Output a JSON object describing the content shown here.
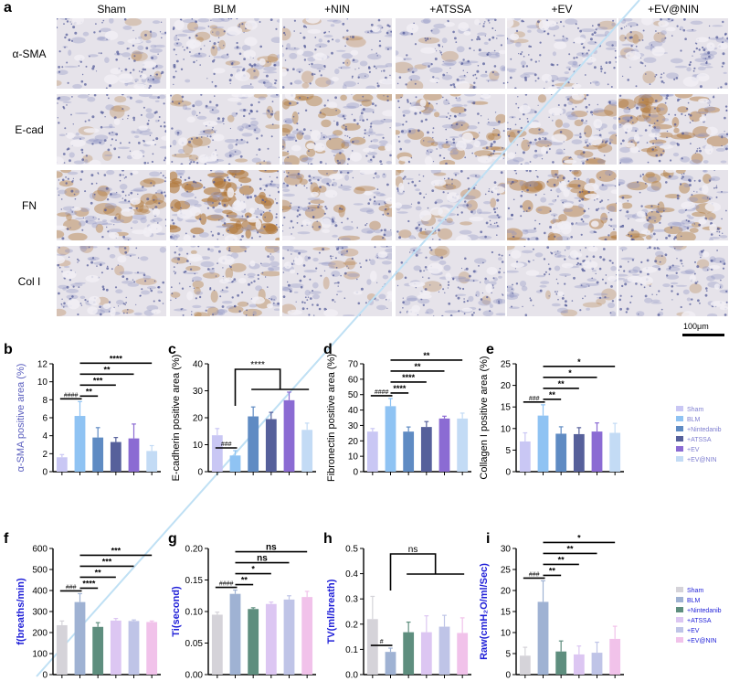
{
  "panel_a": {
    "label": "a",
    "columns": [
      "Sham",
      "BLM",
      "+NIN",
      "+ATSSA",
      "+EV",
      "+EV@NIN"
    ],
    "rows": [
      "α-SMA",
      "E-cad",
      "FN",
      "Col I"
    ],
    "scale_bar": "100μm",
    "stain_colors": {
      "hematoxylin": "#8b93c4",
      "dab": "#b0783a",
      "background": "#e6e3ea"
    },
    "dab_intensity": [
      [
        0.1,
        0.22,
        0.15,
        0.12,
        0.1,
        0.12
      ],
      [
        0.1,
        0.25,
        0.5,
        0.45,
        0.4,
        0.55
      ],
      [
        0.45,
        0.9,
        0.4,
        0.3,
        0.55,
        0.5
      ],
      [
        0.15,
        0.35,
        0.15,
        0.1,
        0.1,
        0.1
      ]
    ]
  },
  "chart_data": [
    {
      "panel": "b",
      "type": "bar",
      "ylabel": "α-SMA  positive area (%)",
      "ylim": [
        0,
        12
      ],
      "yticks": [
        "0",
        "2",
        "4",
        "6",
        "8",
        "10",
        "12"
      ],
      "ylabel_color": "#5b5fbf",
      "values": [
        1.6,
        6.2,
        3.8,
        3.3,
        3.7,
        2.3
      ],
      "errors": [
        0.3,
        1.6,
        1.1,
        0.5,
        1.6,
        0.6
      ],
      "colors": [
        "#c9c7f4",
        "#8fc3f3",
        "#5f8bc3",
        "#56609b",
        "#8b6bd3",
        "#c3dbf5"
      ],
      "annotations": [
        {
          "text": "####",
          "from": 0,
          "to": 1
        },
        {
          "text": "**",
          "from": 1,
          "to": 2
        },
        {
          "text": "***",
          "from": 1,
          "to": 3
        },
        {
          "text": "**",
          "from": 1,
          "to": 4
        },
        {
          "text": "****",
          "from": 1,
          "to": 5
        }
      ]
    },
    {
      "panel": "c",
      "type": "bar",
      "ylabel": "E-cadherin positive area (%)",
      "ylim": [
        0,
        40
      ],
      "yticks": [
        "0",
        "10",
        "20",
        "30",
        "40"
      ],
      "ylabel_color": "#000000",
      "values": [
        13.5,
        6.0,
        20.5,
        19.5,
        26.5,
        15.5
      ],
      "errors": [
        2.5,
        1.8,
        3.5,
        2.5,
        3.0,
        2.5
      ],
      "colors": [
        "#c9c7f4",
        "#8fc3f3",
        "#5f8bc3",
        "#56609b",
        "#8b6bd3",
        "#c3dbf5"
      ],
      "annotations": [
        {
          "text": "###",
          "from": 0,
          "to": 1
        },
        {
          "text": "****",
          "from": 1,
          "to": 5,
          "group": true
        }
      ]
    },
    {
      "panel": "d",
      "type": "bar",
      "ylabel": "Fibronectin positive area (%)",
      "ylim": [
        0,
        70
      ],
      "yticks": [
        "0",
        "10",
        "20",
        "30",
        "40",
        "50",
        "60",
        "70"
      ],
      "ylabel_color": "#000000",
      "values": [
        26,
        42.5,
        26,
        29,
        34.5,
        34.5
      ],
      "errors": [
        2,
        5,
        3,
        3.5,
        1.5,
        3.5
      ],
      "colors": [
        "#c9c7f4",
        "#8fc3f3",
        "#5f8bc3",
        "#56609b",
        "#8b6bd3",
        "#c3dbf5"
      ],
      "annotations": [
        {
          "text": "####",
          "from": 0,
          "to": 1
        },
        {
          "text": "****",
          "from": 1,
          "to": 2
        },
        {
          "text": "****",
          "from": 1,
          "to": 3
        },
        {
          "text": "**",
          "from": 1,
          "to": 4
        },
        {
          "text": "**",
          "from": 1,
          "to": 5
        }
      ]
    },
    {
      "panel": "e",
      "type": "bar",
      "ylabel": "Collagen I positive area (%)",
      "ylim": [
        0,
        25
      ],
      "yticks": [
        "0",
        "5",
        "10",
        "15",
        "20",
        "25"
      ],
      "ylabel_color": "#000000",
      "values": [
        7,
        13,
        8.8,
        8.7,
        9.3,
        9
      ],
      "errors": [
        2,
        2.5,
        1.6,
        1.5,
        2,
        2.2
      ],
      "colors": [
        "#c9c7f4",
        "#8fc3f3",
        "#5f8bc3",
        "#56609b",
        "#8b6bd3",
        "#c3dbf5"
      ],
      "annotations": [
        {
          "text": "###",
          "from": 0,
          "to": 1
        },
        {
          "text": "**",
          "from": 1,
          "to": 2
        },
        {
          "text": "**",
          "from": 1,
          "to": 3
        },
        {
          "text": "*",
          "from": 1,
          "to": 4
        },
        {
          "text": "*",
          "from": 1,
          "to": 5
        }
      ],
      "legend": [
        "Sham",
        "BLM",
        "+Nintedanib",
        "+ATSSA",
        "+EV",
        "+EV@NIN"
      ],
      "legend_text_color": "#7f7fd0"
    },
    {
      "panel": "f",
      "type": "bar",
      "ylabel": "f(breaths/min)",
      "ylim": [
        0,
        600
      ],
      "yticks": [
        "0",
        "100",
        "200",
        "300",
        "400",
        "500",
        "600"
      ],
      "ylabel_color": "#1f1fd8",
      "values": [
        235,
        345,
        227,
        257,
        255,
        250
      ],
      "errors": [
        20,
        40,
        20,
        10,
        5,
        5
      ],
      "colors": [
        "#d5d3d9",
        "#9fb2d3",
        "#5e8e7e",
        "#dcc6f2",
        "#bfc4e7",
        "#f1c2ea"
      ],
      "annotations": [
        {
          "text": "###",
          "from": 0,
          "to": 1
        },
        {
          "text": "****",
          "from": 1,
          "to": 2
        },
        {
          "text": "**",
          "from": 1,
          "to": 3
        },
        {
          "text": "***",
          "from": 1,
          "to": 4
        },
        {
          "text": "***",
          "from": 1,
          "to": 5
        }
      ]
    },
    {
      "panel": "g",
      "type": "bar",
      "ylabel": "Ti(second)",
      "ylim": [
        0,
        0.2
      ],
      "yticks": [
        "0.00",
        "0.05",
        "0.10",
        "0.15",
        "0.20"
      ],
      "ylabel_color": "#1f1fd8",
      "values": [
        0.095,
        0.128,
        0.104,
        0.112,
        0.119,
        0.123
      ],
      "errors": [
        0.004,
        0.006,
        0.002,
        0.003,
        0.006,
        0.009
      ],
      "colors": [
        "#d5d3d9",
        "#9fb2d3",
        "#5e8e7e",
        "#dcc6f2",
        "#bfc4e7",
        "#f1c2ea"
      ],
      "annotations": [
        {
          "text": "####",
          "from": 0,
          "to": 1
        },
        {
          "text": "**",
          "from": 1,
          "to": 2
        },
        {
          "text": "*",
          "from": 1,
          "to": 3
        },
        {
          "text": "ns",
          "from": 1,
          "to": 4
        },
        {
          "text": "ns",
          "from": 1,
          "to": 5
        }
      ]
    },
    {
      "panel": "h",
      "type": "bar",
      "ylabel": "TV(ml/breath)",
      "ylim": [
        0,
        0.5
      ],
      "yticks": [
        "0.0",
        "0.1",
        "0.2",
        "0.3",
        "0.4",
        "0.5"
      ],
      "ylabel_color": "#1f1fd8",
      "values": [
        0.22,
        0.09,
        0.168,
        0.168,
        0.19,
        0.165
      ],
      "errors": [
        0.09,
        0.015,
        0.04,
        0.065,
        0.045,
        0.06
      ],
      "colors": [
        "#d5d3d9",
        "#9fb2d3",
        "#5e8e7e",
        "#dcc6f2",
        "#bfc4e7",
        "#f1c2ea"
      ],
      "annotations": [
        {
          "text": "#",
          "from": 0,
          "to": 1
        },
        {
          "text": "ns",
          "from": 1,
          "to": 5,
          "group": true
        }
      ]
    },
    {
      "panel": "i",
      "type": "bar",
      "ylabel": "Raw(cmH₂O/ml/Sec)",
      "ylim": [
        0,
        30
      ],
      "yticks": [
        "0",
        "5",
        "10",
        "15",
        "20",
        "25",
        "30"
      ],
      "ylabel_color": "#1f1fd8",
      "values": [
        4.5,
        17.3,
        5.5,
        4.8,
        5.2,
        8.5
      ],
      "errors": [
        2,
        5,
        2.5,
        2,
        2.5,
        3
      ],
      "colors": [
        "#d5d3d9",
        "#9fb2d3",
        "#5e8e7e",
        "#dcc6f2",
        "#bfc4e7",
        "#f1c2ea"
      ],
      "annotations": [
        {
          "text": "###",
          "from": 0,
          "to": 1
        },
        {
          "text": "**",
          "from": 1,
          "to": 2
        },
        {
          "text": "**",
          "from": 1,
          "to": 3
        },
        {
          "text": "**",
          "from": 1,
          "to": 4
        },
        {
          "text": "*",
          "from": 1,
          "to": 5
        }
      ],
      "legend": [
        "Sham",
        "BLM",
        "+Nintedanib",
        "+ATSSA",
        "+EV",
        "+EV@NIN"
      ],
      "legend_text_color": "#1f1fd8"
    }
  ]
}
